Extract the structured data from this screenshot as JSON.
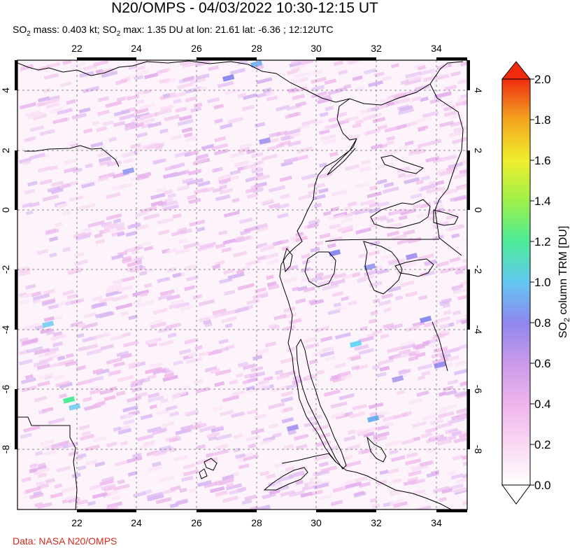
{
  "title": "N20/OMPS - 04/03/2022 10:30-12:15 UT",
  "subtitle": {
    "so2_mass_label": "SO",
    "so2_mass_sub": "2",
    "so2_mass_value": " mass: 0.403 kt; SO",
    "so2_max_sub": "2",
    "so2_max_value": " max: 1.35 DU at lon: 21.61 lat: -6.36 ; 12:12UTC"
  },
  "credit": "Data: NASA N20/OMPS",
  "map": {
    "lon_ticks": [
      "22",
      "24",
      "26",
      "28",
      "30",
      "32",
      "34"
    ],
    "lat_ticks": [
      "4",
      "2",
      "0",
      "-2",
      "-4",
      "-6",
      "-8"
    ],
    "lon_range": [
      20,
      35
    ],
    "lat_range": [
      -10,
      5
    ]
  },
  "colorbar": {
    "label": "SO2 column TRM [DU]",
    "label_main": "SO",
    "label_sub": "2",
    "label_rest": " column TRM [DU]",
    "ticks": [
      "2.0",
      "1.8",
      "1.6",
      "1.4",
      "1.2",
      "1.0",
      "0.8",
      "0.6",
      "0.4",
      "0.2",
      "0.0"
    ],
    "min": 0.0,
    "max": 2.0,
    "colors": [
      "#ffffff",
      "#f7c6f0",
      "#c58ae8",
      "#7e82f0",
      "#56ccf2",
      "#4ef08f",
      "#a4f04a",
      "#f2f02e",
      "#f2a51e",
      "#ef3312"
    ]
  }
}
